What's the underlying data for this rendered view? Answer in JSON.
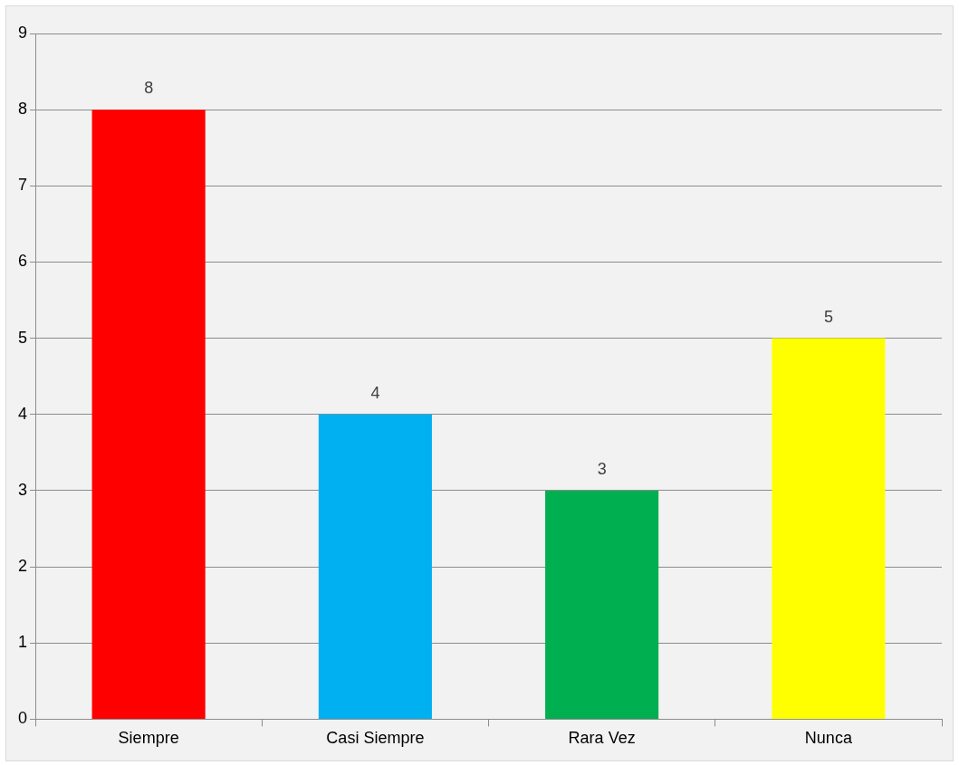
{
  "chart_data": {
    "type": "bar",
    "categories": [
      "Siempre",
      "Casi Siempre",
      "Rara Vez",
      "Nunca"
    ],
    "values": [
      8,
      4,
      3,
      5
    ],
    "colors": [
      "#ff0000",
      "#00b0f0",
      "#00b050",
      "#ffff00"
    ],
    "ylim": [
      0,
      9
    ],
    "yticks": [
      0,
      1,
      2,
      3,
      4,
      5,
      6,
      7,
      8,
      9
    ],
    "grid": "y",
    "legend": false,
    "data_labels": true
  }
}
